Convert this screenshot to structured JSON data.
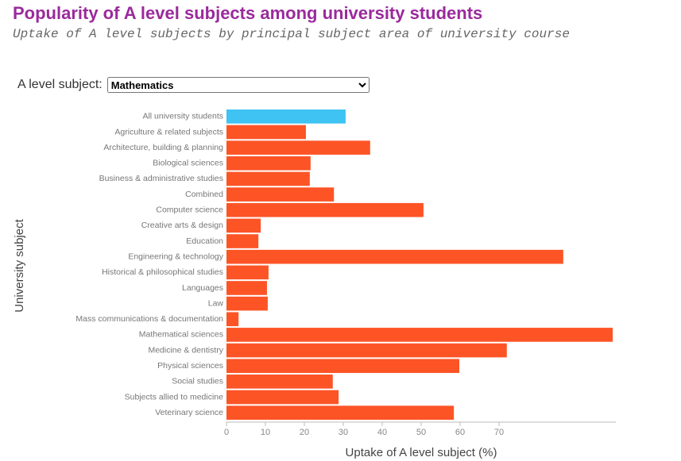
{
  "control": {
    "label": "A level subject:",
    "value": "Mathematics"
  },
  "chart_data": {
    "type": "barh",
    "title": "Popularity of A level subjects among university students",
    "subtitle": "Uptake of A level subjects by principal subject area of university course",
    "x_label": "Uptake of A level subject (%)",
    "y_label": "University subject",
    "categories": [
      "All university students",
      "Agriculture & related subjects",
      "Architecture, building & planning",
      "Biological sciences",
      "Business & administrative studies",
      "Combined",
      "Computer science",
      "Creative arts & design",
      "Education",
      "Engineering & technology",
      "Historical & philosophical studies",
      "Languages",
      "Law",
      "Mass communications & documentation",
      "Mathematical sciences",
      "Medicine & dentistry",
      "Physical sciences",
      "Social studies",
      "Subjects allied to medicine",
      "Veterinary science"
    ],
    "values": [
      30.6,
      20.4,
      36.9,
      21.6,
      21.4,
      27.6,
      50.6,
      8.8,
      8.2,
      86.5,
      10.8,
      10.4,
      10.6,
      3.1,
      99.2,
      72.0,
      59.8,
      27.3,
      28.8,
      58.4
    ],
    "colors": [
      "#3ec3f2",
      "#fd5426",
      "#fd5426",
      "#fd5426",
      "#fd5426",
      "#fd5426",
      "#fd5426",
      "#fd5426",
      "#fd5426",
      "#fd5426",
      "#fd5426",
      "#fd5426",
      "#fd5426",
      "#fd5426",
      "#fd5426",
      "#fd5426",
      "#fd5426",
      "#fd5426",
      "#fd5426",
      "#fd5426"
    ],
    "xlim": [
      0,
      100
    ],
    "xticks": [
      0,
      10,
      20,
      30,
      40,
      50,
      60,
      70
    ]
  }
}
